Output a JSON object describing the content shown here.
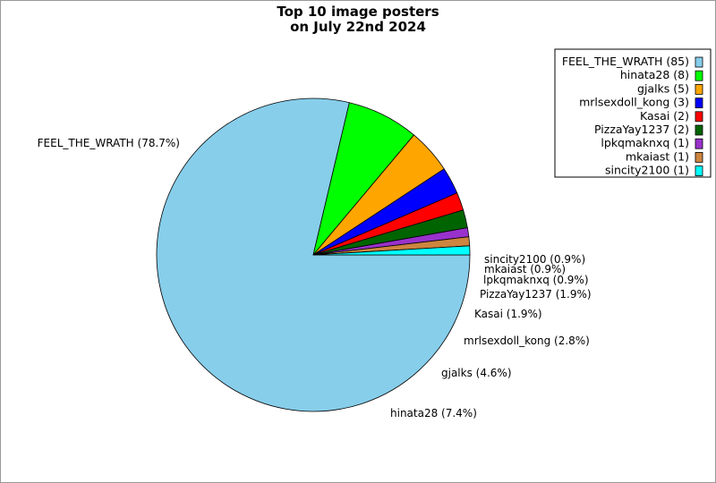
{
  "chart_data": {
    "type": "pie",
    "title": [
      "Top 10 image posters",
      "on July 22nd 2024"
    ],
    "start_angle_deg": 0,
    "direction": "clockwise",
    "legend_position": "top-right",
    "slices": [
      {
        "name": "FEEL_THE_WRATH",
        "count": 85,
        "percent": 78.7,
        "color": "#87CEEB",
        "label": "FEEL_THE_WRATH (78.7%)",
        "legend": "FEEL_THE_WRATH (85)"
      },
      {
        "name": "hinata28",
        "count": 8,
        "percent": 7.4,
        "color": "#00FF00",
        "label": "hinata28 (7.4%)",
        "legend": "hinata28 (8)"
      },
      {
        "name": "gjalks",
        "count": 5,
        "percent": 4.6,
        "color": "#FFA500",
        "label": "gjalks (4.6%)",
        "legend": "gjalks (5)"
      },
      {
        "name": "mrlsexdoll_kong",
        "count": 3,
        "percent": 2.8,
        "color": "#0000FF",
        "label": "mrlsexdoll_kong (2.8%)",
        "legend": "mrlsexdoll_kong (3)"
      },
      {
        "name": "Kasai",
        "count": 2,
        "percent": 1.9,
        "color": "#FF0000",
        "label": "Kasai (1.9%)",
        "legend": "Kasai (2)"
      },
      {
        "name": "PizzaYay1237",
        "count": 2,
        "percent": 1.9,
        "color": "#006400",
        "label": "PizzaYay1237 (1.9%)",
        "legend": "PizzaYay1237 (2)"
      },
      {
        "name": "lpkqmaknxq",
        "count": 1,
        "percent": 0.9,
        "color": "#9932CC",
        "label": "lpkqmaknxq (0.9%)",
        "legend": "lpkqmaknxq (1)"
      },
      {
        "name": "mkaiast",
        "count": 1,
        "percent": 0.9,
        "color": "#CD853F",
        "label": "mkaiast (0.9%)",
        "legend": "mkaiast (1)"
      },
      {
        "name": "sincity2100",
        "count": 1,
        "percent": 0.9,
        "color": "#00FFFF",
        "label": "sincity2100 (0.9%)",
        "legend": "sincity2100 (1)"
      }
    ]
  }
}
